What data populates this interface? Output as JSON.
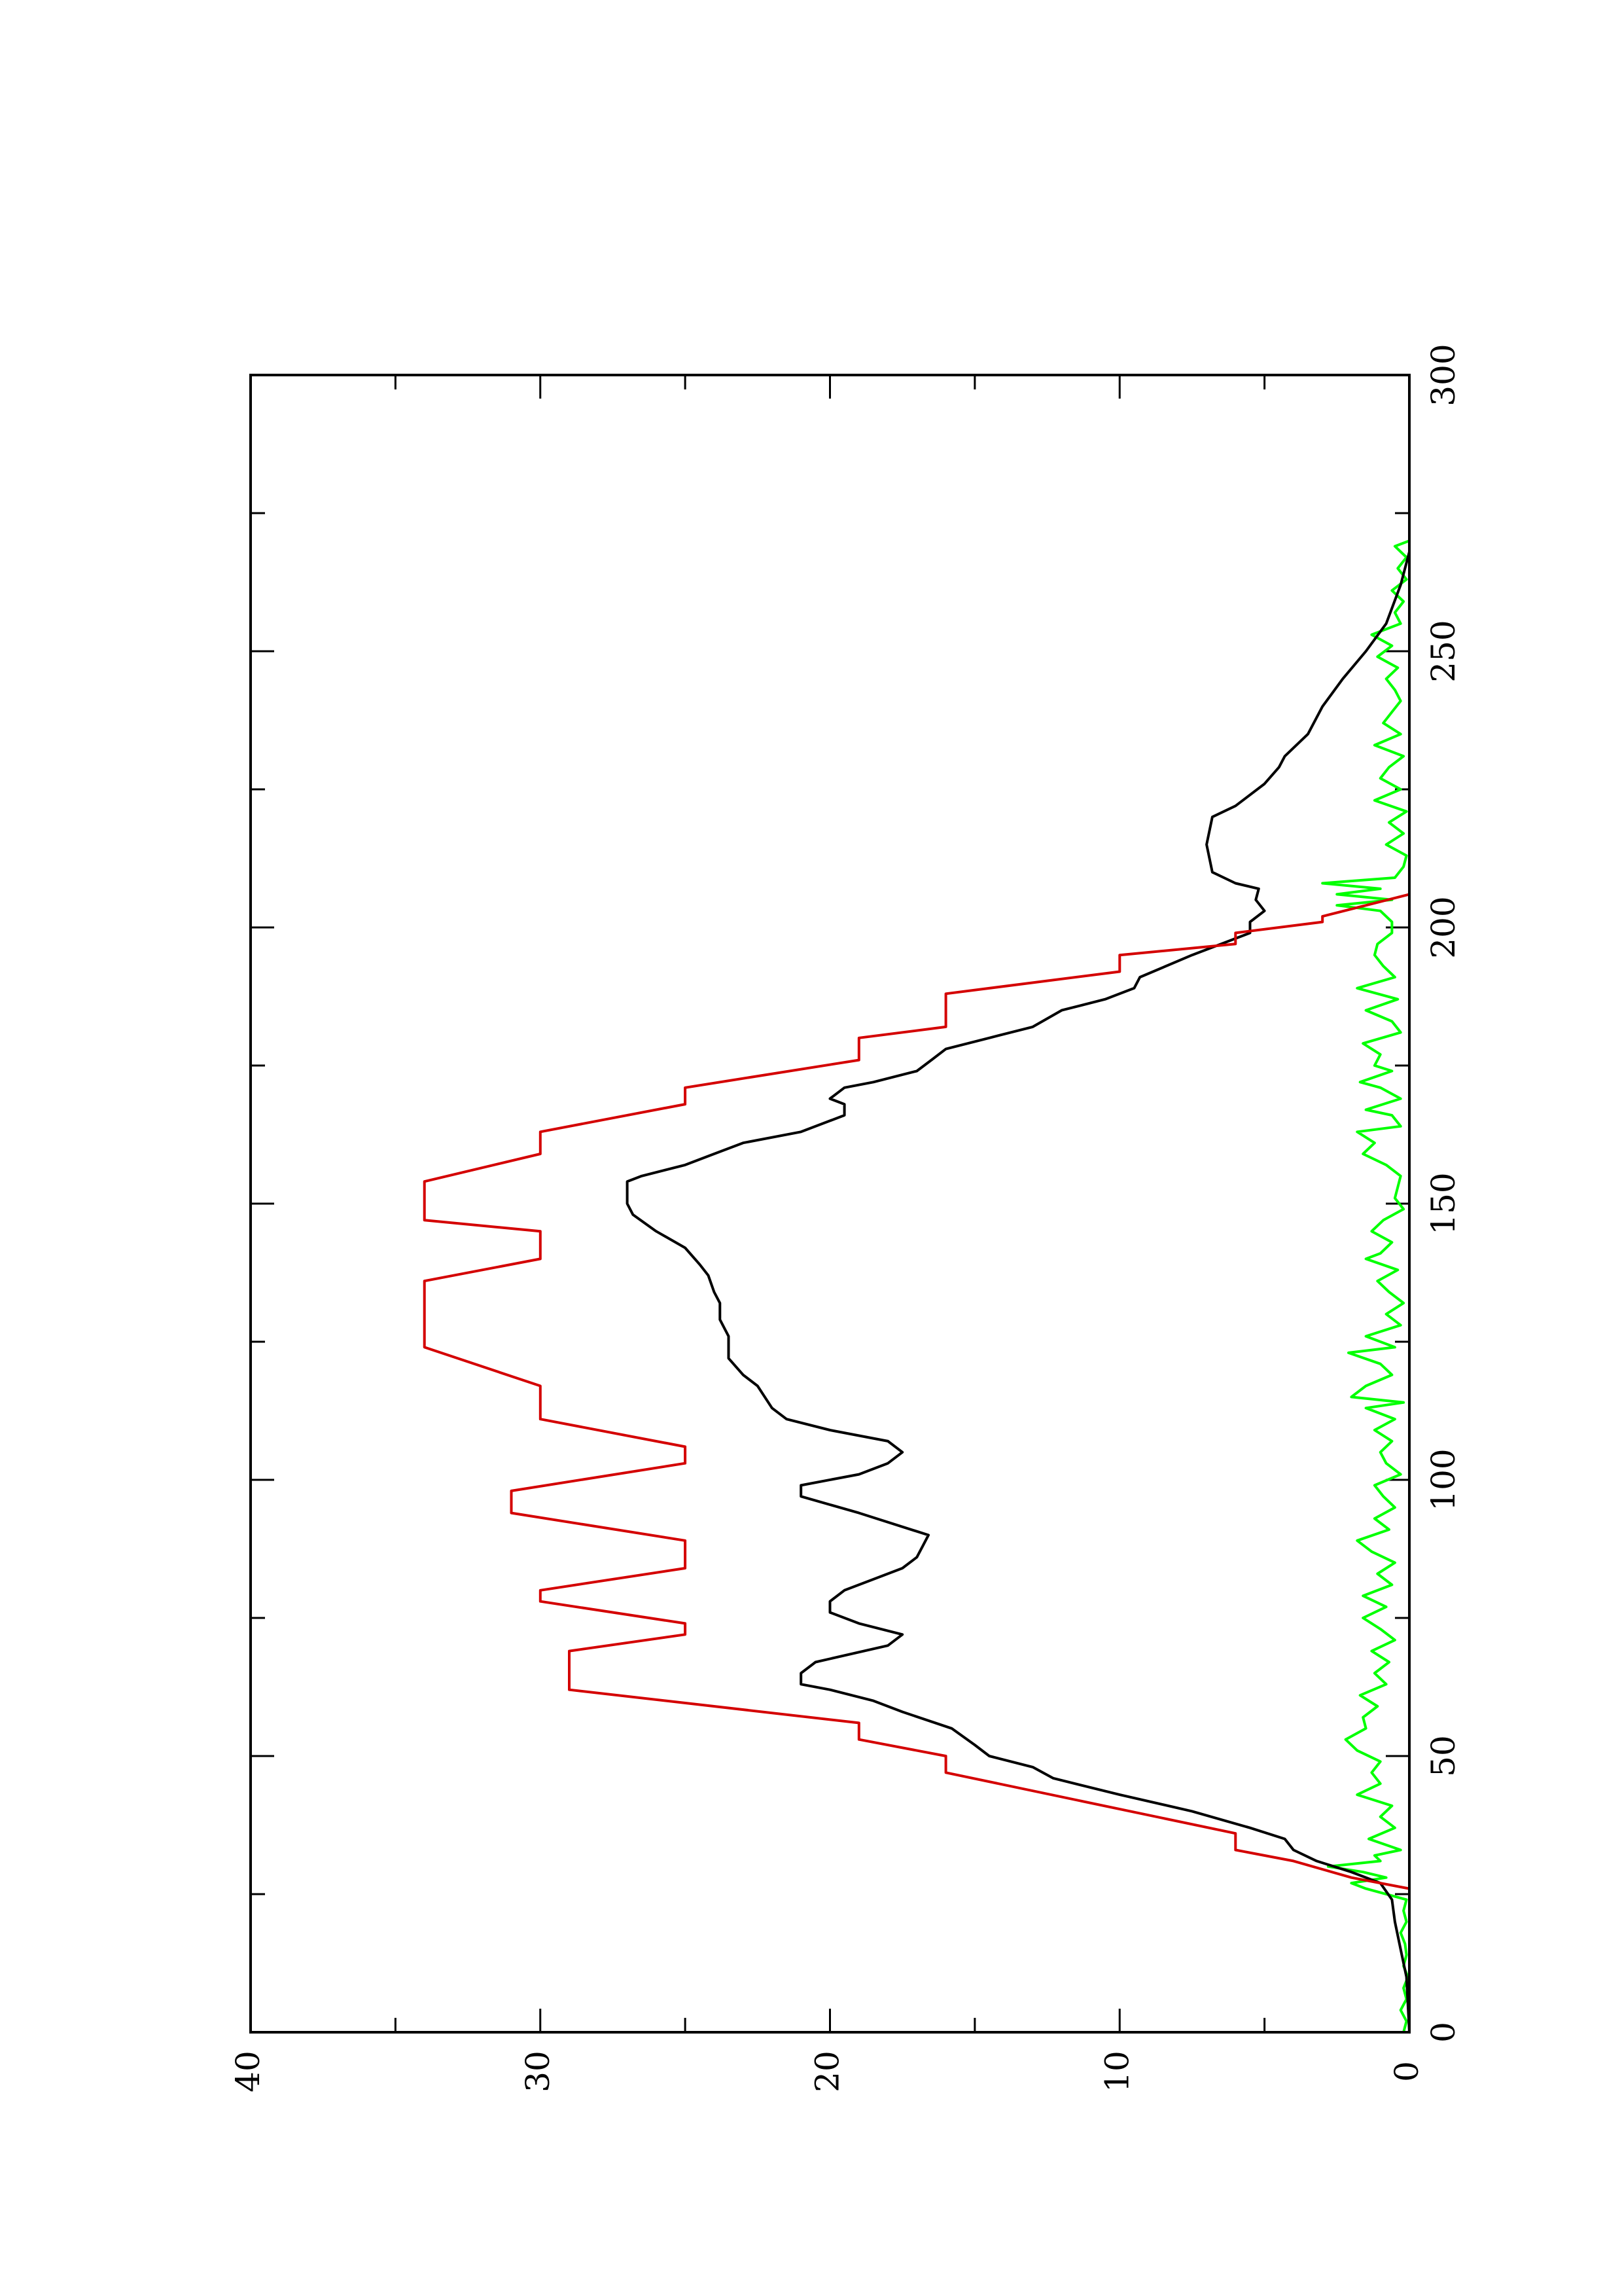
{
  "chart_data": {
    "type": "line",
    "orientation": "rotated-90-ccw",
    "title": "",
    "xlabel": "",
    "ylabel": "",
    "xlim": [
      0,
      300
    ],
    "ylim": [
      0,
      40
    ],
    "x_major_ticks": [
      0,
      50,
      100,
      150,
      200,
      250,
      300
    ],
    "x_minor_ticks": [
      25,
      75,
      125,
      175,
      225,
      275
    ],
    "y_major_ticks": [
      0,
      10,
      20,
      30,
      40
    ],
    "y_minor_ticks": [
      5,
      15,
      25,
      35
    ],
    "x_tick_labels": [
      "0",
      "50",
      "100",
      "150",
      "200",
      "250",
      "300"
    ],
    "y_tick_labels": [
      "0",
      "10",
      "20",
      "30",
      "40"
    ],
    "grid": false,
    "legend": "none",
    "series": [
      {
        "color": "#d40000",
        "style": "step",
        "points": [
          [
            26,
            0
          ],
          [
            28,
            2
          ],
          [
            31,
            4
          ],
          [
            33,
            6
          ],
          [
            36,
            6
          ],
          [
            47,
            16
          ],
          [
            50,
            16
          ],
          [
            53,
            19
          ],
          [
            56,
            19
          ],
          [
            62,
            29
          ],
          [
            69,
            29
          ],
          [
            72,
            25
          ],
          [
            74,
            25
          ],
          [
            78,
            30
          ],
          [
            80,
            30
          ],
          [
            84,
            25
          ],
          [
            89,
            25
          ],
          [
            94,
            31
          ],
          [
            98,
            31
          ],
          [
            103,
            25
          ],
          [
            106,
            25
          ],
          [
            111,
            30
          ],
          [
            117,
            30
          ],
          [
            124,
            34
          ],
          [
            136,
            34
          ],
          [
            140,
            30
          ],
          [
            145,
            30
          ],
          [
            147,
            34
          ],
          [
            154,
            34
          ],
          [
            159,
            30
          ],
          [
            163,
            30
          ],
          [
            168,
            25
          ],
          [
            171,
            25
          ],
          [
            176,
            19
          ],
          [
            180,
            19
          ],
          [
            182,
            16
          ],
          [
            188,
            16
          ],
          [
            192,
            10
          ],
          [
            195,
            10
          ],
          [
            197,
            6
          ],
          [
            199,
            6
          ],
          [
            201,
            3
          ],
          [
            202,
            3
          ],
          [
            206,
            0
          ]
        ]
      },
      {
        "color": "#000000",
        "style": "line",
        "points": [
          [
            0,
            0
          ],
          [
            10,
            0.1
          ],
          [
            15,
            0.3
          ],
          [
            20,
            0.5
          ],
          [
            24,
            0.6
          ],
          [
            27,
            1.0
          ],
          [
            29,
            2.0
          ],
          [
            31,
            3.2
          ],
          [
            33,
            4.0
          ],
          [
            35,
            4.3
          ],
          [
            37,
            5.5
          ],
          [
            40,
            7.5
          ],
          [
            43,
            10
          ],
          [
            46,
            12.3
          ],
          [
            48,
            13
          ],
          [
            50,
            14.5
          ],
          [
            52,
            15
          ],
          [
            55,
            15.8
          ],
          [
            58,
            17.5
          ],
          [
            60,
            18.5
          ],
          [
            62,
            20
          ],
          [
            63,
            21
          ],
          [
            65,
            21
          ],
          [
            67,
            20.5
          ],
          [
            70,
            18
          ],
          [
            72,
            17.5
          ],
          [
            74,
            19
          ],
          [
            76,
            20
          ],
          [
            78,
            20
          ],
          [
            80,
            19.5
          ],
          [
            84,
            17.5
          ],
          [
            86,
            17
          ],
          [
            88,
            16.8
          ],
          [
            90,
            16.6
          ],
          [
            94,
            19
          ],
          [
            97,
            21
          ],
          [
            99,
            21
          ],
          [
            101,
            19
          ],
          [
            103,
            18
          ],
          [
            105,
            17.5
          ],
          [
            107,
            18
          ],
          [
            109,
            20
          ],
          [
            111,
            21.5
          ],
          [
            113,
            22
          ],
          [
            117,
            22.5
          ],
          [
            119,
            23
          ],
          [
            122,
            23.5
          ],
          [
            126,
            23.5
          ],
          [
            129,
            23.8
          ],
          [
            132,
            23.8
          ],
          [
            134,
            24
          ],
          [
            137,
            24.2
          ],
          [
            139,
            24.5
          ],
          [
            142,
            25
          ],
          [
            145,
            26
          ],
          [
            148,
            26.8
          ],
          [
            150,
            27
          ],
          [
            152,
            27
          ],
          [
            154,
            27
          ],
          [
            155,
            26.5
          ],
          [
            157,
            25
          ],
          [
            159,
            24
          ],
          [
            161,
            23
          ],
          [
            163,
            21
          ],
          [
            165,
            20
          ],
          [
            166,
            19.5
          ],
          [
            168,
            19.5
          ],
          [
            169,
            20
          ],
          [
            171,
            19.5
          ],
          [
            172,
            18.5
          ],
          [
            174,
            17
          ],
          [
            176,
            16.5
          ],
          [
            178,
            16
          ],
          [
            180,
            14.5
          ],
          [
            182,
            13
          ],
          [
            185,
            12
          ],
          [
            187,
            10.5
          ],
          [
            189,
            9.5
          ],
          [
            191,
            9.3
          ],
          [
            195,
            7.5
          ],
          [
            198,
            6
          ],
          [
            199,
            5.5
          ],
          [
            201,
            5.5
          ],
          [
            203,
            5
          ],
          [
            205,
            5.3
          ],
          [
            207,
            5.2
          ],
          [
            208,
            6
          ],
          [
            210,
            6.8
          ],
          [
            215,
            7
          ],
          [
            220,
            6.8
          ],
          [
            222,
            6
          ],
          [
            226,
            5
          ],
          [
            229,
            4.5
          ],
          [
            231,
            4.3
          ],
          [
            235,
            3.5
          ],
          [
            240,
            3
          ],
          [
            245,
            2.3
          ],
          [
            250,
            1.5
          ],
          [
            255,
            0.8
          ],
          [
            262,
            0.3
          ],
          [
            268,
            0
          ]
        ]
      },
      {
        "color": "#00ff00",
        "style": "line",
        "points": [
          [
            0,
            0.2
          ],
          [
            2,
            0.1
          ],
          [
            4,
            0.3
          ],
          [
            6,
            0.1
          ],
          [
            8,
            0.2
          ],
          [
            10,
            0.05
          ],
          [
            12,
            0.2
          ],
          [
            14,
            0.1
          ],
          [
            16,
            0.15
          ],
          [
            18,
            0.3
          ],
          [
            20,
            0.1
          ],
          [
            22,
            0.2
          ],
          [
            24,
            0.1
          ],
          [
            26,
            1.5
          ],
          [
            27,
            2.0
          ],
          [
            28,
            0.8
          ],
          [
            29,
            1.6
          ],
          [
            30,
            2.8
          ],
          [
            31,
            1.0
          ],
          [
            32,
            1.2
          ],
          [
            33,
            0.3
          ],
          [
            35,
            1.4
          ],
          [
            37,
            0.5
          ],
          [
            39,
            1.0
          ],
          [
            41,
            0.6
          ],
          [
            43,
            1.8
          ],
          [
            45,
            1.0
          ],
          [
            47,
            1.3
          ],
          [
            49,
            1.0
          ],
          [
            51,
            1.8
          ],
          [
            53,
            2.2
          ],
          [
            55,
            1.5
          ],
          [
            57,
            1.6
          ],
          [
            59,
            1.1
          ],
          [
            61,
            1.7
          ],
          [
            63,
            0.8
          ],
          [
            65,
            1.2
          ],
          [
            67,
            0.7
          ],
          [
            69,
            1.3
          ],
          [
            71,
            0.5
          ],
          [
            73,
            1.0
          ],
          [
            75,
            1.6
          ],
          [
            77,
            0.8
          ],
          [
            79,
            1.6
          ],
          [
            81,
            0.6
          ],
          [
            83,
            1.1
          ],
          [
            85,
            0.5
          ],
          [
            87,
            1.3
          ],
          [
            89,
            1.8
          ],
          [
            91,
            0.7
          ],
          [
            93,
            1.2
          ],
          [
            95,
            0.5
          ],
          [
            97,
            0.9
          ],
          [
            99,
            1.2
          ],
          [
            101,
            0.3
          ],
          [
            103,
            0.8
          ],
          [
            105,
            1.0
          ],
          [
            107,
            0.6
          ],
          [
            109,
            1.2
          ],
          [
            111,
            0.5
          ],
          [
            113,
            1.5
          ],
          [
            114,
            0.2
          ],
          [
            115,
            2.0
          ],
          [
            117,
            1.5
          ],
          [
            119,
            0.6
          ],
          [
            121,
            1.0
          ],
          [
            123,
            2.1
          ],
          [
            124,
            0.5
          ],
          [
            126,
            1.5
          ],
          [
            128,
            0.3
          ],
          [
            130,
            0.8
          ],
          [
            132,
            0.2
          ],
          [
            134,
            0.7
          ],
          [
            136,
            1.1
          ],
          [
            138,
            0.4
          ],
          [
            140,
            1.5
          ],
          [
            141,
            1.0
          ],
          [
            143,
            0.6
          ],
          [
            145,
            1.3
          ],
          [
            147,
            0.9
          ],
          [
            149,
            0.2
          ],
          [
            151,
            0.5
          ],
          [
            153,
            0.4
          ],
          [
            155,
            0.3
          ],
          [
            157,
            0.8
          ],
          [
            159,
            1.6
          ],
          [
            161,
            1.2
          ],
          [
            163,
            1.8
          ],
          [
            164,
            0.3
          ],
          [
            166,
            0.6
          ],
          [
            167,
            1.5
          ],
          [
            169,
            0.3
          ],
          [
            171,
            1.0
          ],
          [
            172,
            1.7
          ],
          [
            174,
            0.6
          ],
          [
            175,
            1.2
          ],
          [
            177,
            1.0
          ],
          [
            179,
            1.6
          ],
          [
            181,
            0.3
          ],
          [
            183,
            0.6
          ],
          [
            185,
            1.5
          ],
          [
            187,
            0.4
          ],
          [
            189,
            1.8
          ],
          [
            191,
            0.5
          ],
          [
            193,
            0.9
          ],
          [
            195,
            1.2
          ],
          [
            197,
            1.1
          ],
          [
            199,
            0.6
          ],
          [
            201,
            0.6
          ],
          [
            203,
            1.0
          ],
          [
            204,
            2.5
          ],
          [
            205,
            0.6
          ],
          [
            206,
            2.5
          ],
          [
            207,
            1.0
          ],
          [
            208,
            3.0
          ],
          [
            209,
            0.5
          ],
          [
            211,
            0.2
          ],
          [
            213,
            0.1
          ],
          [
            215,
            0.8
          ],
          [
            217,
            0.2
          ],
          [
            219,
            0.7
          ],
          [
            221,
            0.1
          ],
          [
            223,
            1.2
          ],
          [
            225,
            0.3
          ],
          [
            227,
            1.0
          ],
          [
            229,
            0.7
          ],
          [
            231,
            0.2
          ],
          [
            233,
            1.2
          ],
          [
            235,
            0.3
          ],
          [
            237,
            0.9
          ],
          [
            239,
            0.6
          ],
          [
            241,
            0.3
          ],
          [
            243,
            0.5
          ],
          [
            245,
            0.8
          ],
          [
            247,
            0.4
          ],
          [
            249,
            1.1
          ],
          [
            251,
            0.6
          ],
          [
            253,
            1.3
          ],
          [
            255,
            0.3
          ],
          [
            257,
            0.5
          ],
          [
            259,
            0.2
          ],
          [
            261,
            0.6
          ],
          [
            263,
            0.1
          ],
          [
            265,
            0.4
          ],
          [
            267,
            0.1
          ],
          [
            269,
            0.5
          ],
          [
            270,
            0
          ]
        ]
      }
    ]
  }
}
